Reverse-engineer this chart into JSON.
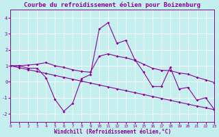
{
  "title": "Courbe du refroidissement éolien pour Boizenburg",
  "xlabel": "Windchill (Refroidissement éolien,°C)",
  "background_color": "#c5eeee",
  "line_color": "#880099",
  "grid_color": "#ffffff",
  "xlim": [
    0,
    23
  ],
  "ylim": [
    -2.5,
    4.5
  ],
  "yticks": [
    -2,
    -1,
    0,
    1,
    2,
    3,
    4
  ],
  "xticks": [
    0,
    1,
    2,
    3,
    4,
    5,
    6,
    7,
    8,
    9,
    10,
    11,
    12,
    13,
    14,
    15,
    16,
    17,
    18,
    19,
    20,
    21,
    22,
    23
  ],
  "line1_y": [
    1.0,
    1.0,
    0.85,
    0.85,
    0.25,
    -1.1,
    -1.85,
    -1.35,
    0.2,
    0.45,
    3.3,
    3.7,
    2.4,
    2.6,
    1.4,
    0.6,
    -0.3,
    -0.3,
    0.9,
    -0.45,
    -0.35,
    -1.15,
    -1.0,
    -1.75
  ],
  "line2_y": [
    1.0,
    1.0,
    1.05,
    1.1,
    1.2,
    1.0,
    0.9,
    0.75,
    0.65,
    0.6,
    1.6,
    1.75,
    1.6,
    1.5,
    1.35,
    1.1,
    0.85,
    0.72,
    0.7,
    0.55,
    0.48,
    0.28,
    0.12,
    -0.05
  ],
  "line3_y": [
    1.0,
    0.88,
    0.76,
    0.64,
    0.52,
    0.4,
    0.28,
    0.16,
    0.04,
    -0.08,
    -0.2,
    -0.32,
    -0.44,
    -0.56,
    -0.68,
    -0.8,
    -0.92,
    -1.04,
    -1.16,
    -1.28,
    -1.4,
    -1.52,
    -1.63,
    -1.75
  ],
  "marker": "D",
  "markersize": 2.0,
  "linewidth": 0.8,
  "title_fontsize": 6.5,
  "xlabel_fontsize": 5.5,
  "tick_fontsize": 4.5
}
